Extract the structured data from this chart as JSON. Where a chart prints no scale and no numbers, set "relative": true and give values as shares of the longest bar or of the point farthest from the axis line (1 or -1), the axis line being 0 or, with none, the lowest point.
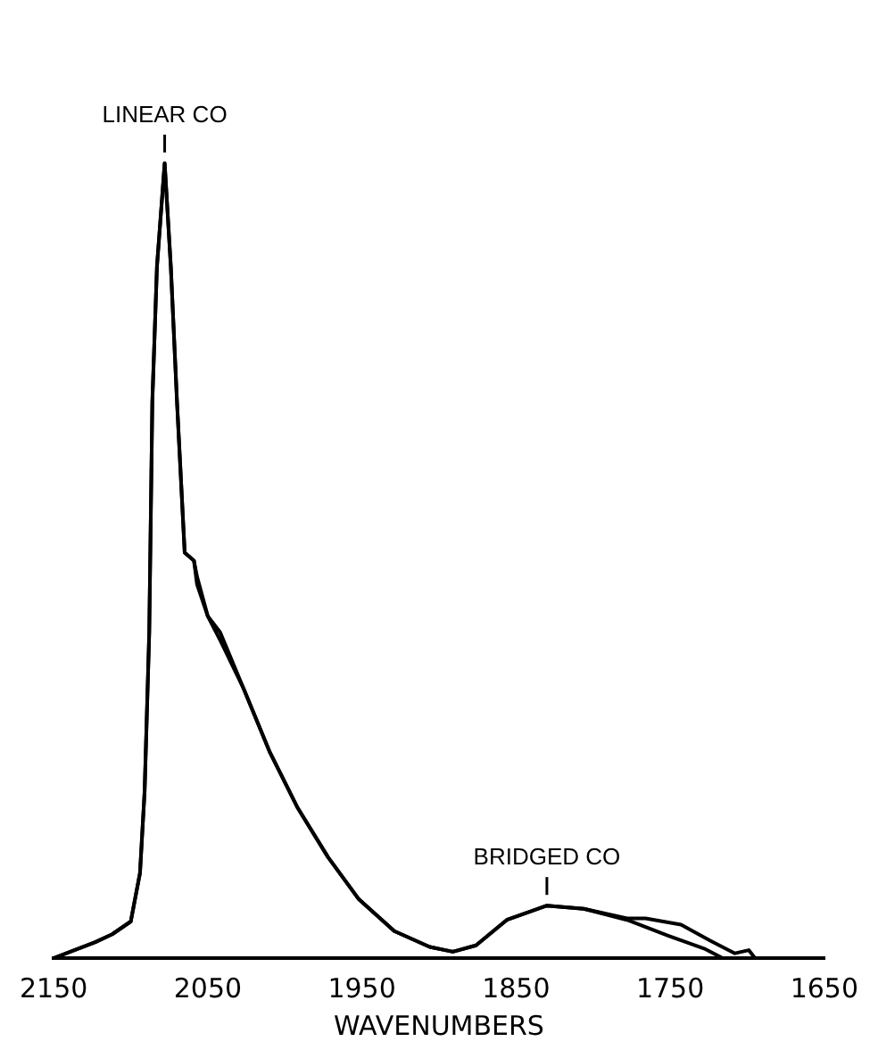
{
  "chart_data": {
    "type": "line",
    "relative": true,
    "xlabel": "WAVENUMBERS",
    "xlim": [
      2150,
      1650
    ],
    "xticks": [
      2150,
      2050,
      1950,
      1850,
      1750,
      1650
    ],
    "grid": false,
    "legend": false,
    "marker": "none",
    "line_style": "solid",
    "series": [
      {
        "color": "#000000",
        "x": [
          2150,
          2123,
          2112,
          2100,
          2094,
          2091,
          2088,
          2086,
          2083,
          2078,
          2074,
          2070,
          2065,
          2059,
          2057,
          2050,
          2042,
          2027,
          2010,
          1992,
          1972,
          1952,
          1929,
          1906,
          1891,
          1876,
          1856,
          1830,
          1806,
          1778,
          1751,
          1728,
          1716
        ],
        "values": [
          0,
          0.02,
          0.03,
          0.046,
          0.107,
          0.21,
          0.41,
          0.7,
          0.87,
          1,
          0.87,
          0.7,
          0.51,
          0.5,
          0.48,
          0.43,
          0.41,
          0.34,
          0.26,
          0.19,
          0.127,
          0.074,
          0.034,
          0.014,
          0.008,
          0.016,
          0.048,
          0.066,
          0.062,
          0.048,
          0.028,
          0.012,
          0
        ]
      },
      {
        "color": "#000000",
        "x": [
          2150,
          2123,
          2112,
          2100,
          2094,
          2091,
          2088,
          2086,
          2083,
          2078,
          2074,
          2070,
          2065,
          2059,
          2057,
          2050,
          2042,
          2027,
          2010,
          1992,
          1972,
          1952,
          1929,
          1906,
          1891,
          1876,
          1856,
          1830,
          1806,
          1778,
          1766,
          1743,
          1724,
          1708,
          1699,
          1695
        ],
        "values": [
          0,
          0.02,
          0.03,
          0.046,
          0.107,
          0.21,
          0.41,
          0.7,
          0.87,
          1,
          0.87,
          0.7,
          0.51,
          0.5,
          0.47,
          0.43,
          0.4,
          0.34,
          0.26,
          0.19,
          0.127,
          0.074,
          0.034,
          0.014,
          0.008,
          0.016,
          0.048,
          0.066,
          0.062,
          0.05,
          0.05,
          0.042,
          0.022,
          0.006,
          0.01,
          0
        ]
      }
    ],
    "annotations": [
      {
        "text": "LINEAR CO",
        "x": 2078,
        "y": 1
      },
      {
        "text": "BRIDGED CO",
        "x": 1830,
        "y": 0.066
      }
    ]
  }
}
